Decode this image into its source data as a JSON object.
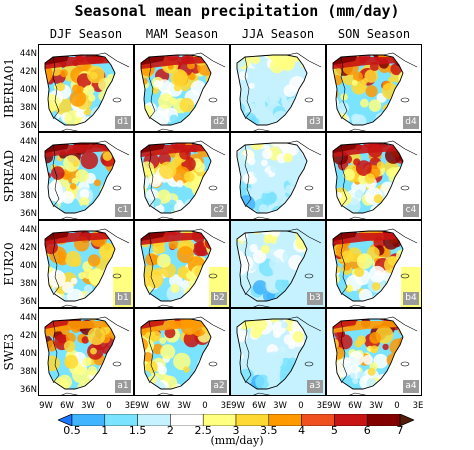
{
  "title": "Seasonal mean precipitation (mm/day)",
  "units": "(mm/day)",
  "chart_data": {
    "type": "heatmap",
    "columns": [
      "DJF Season",
      "MAM Season",
      "JJA Season",
      "SON Season"
    ],
    "rows": [
      "IBERIA01",
      "SPREAD",
      "EUR20",
      "SWE3"
    ],
    "panel_labels": [
      [
        "d1",
        "d2",
        "d3",
        "d4"
      ],
      [
        "c1",
        "c2",
        "c3",
        "c4"
      ],
      [
        "b1",
        "b2",
        "b3",
        "b4"
      ],
      [
        "a1",
        "a2",
        "a3",
        "a4"
      ]
    ],
    "y_ticks": [
      "44N",
      "42N",
      "40N",
      "38N",
      "36N"
    ],
    "x_ticks": [
      "9W",
      "6W",
      "3W",
      "0",
      "3E"
    ],
    "colorbar_ticks": [
      "0.5",
      "1",
      "1.5",
      "2",
      "2.5",
      "3",
      "3.5",
      "4",
      "5",
      "6",
      "7"
    ],
    "colorbar_colors": [
      "#1e78ff",
      "#40b4ff",
      "#7ae3ff",
      "#c6f2ff",
      "#ffffff",
      "#ffff80",
      "#ffd933",
      "#ff9900",
      "#f0501e",
      "#c81414",
      "#820000",
      "#501e0a"
    ]
  }
}
